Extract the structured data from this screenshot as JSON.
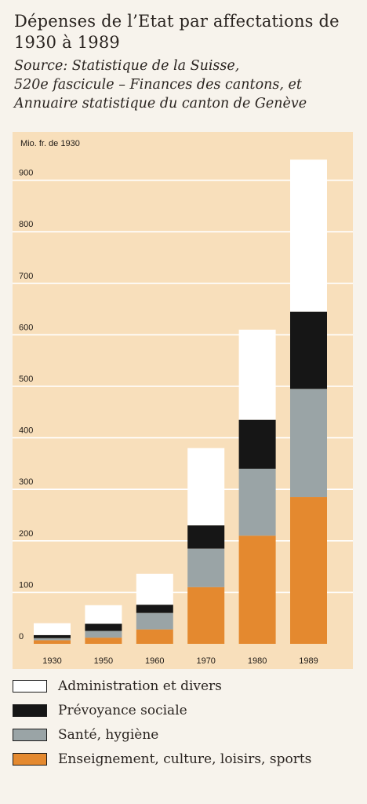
{
  "header": {
    "title": "Dépenses de l’Etat par affectations de 1930 à 1989",
    "source_line1": "Source: Statistique de la Suisse,",
    "source_line2": "520e fascicule – Finances des cantons, et",
    "source_line3": "Annuaire statistique du canton de Genève"
  },
  "colors": {
    "plot_background": "#f8dfbb",
    "gridline": "#ffffff",
    "administration": "#ffffff",
    "prevoyance": "#161616",
    "sante": "#9aa4a6",
    "enseignement": "#e4892f"
  },
  "chart_data": {
    "type": "bar",
    "stacked": true,
    "title": "Dépenses de l’Etat par affectations de 1930 à 1989",
    "ylabel": "Mio. fr. de 1930",
    "xlabel": "",
    "ylim": [
      0,
      940
    ],
    "yticks": [
      0,
      100,
      200,
      300,
      400,
      500,
      600,
      700,
      800,
      900
    ],
    "grid": true,
    "legend_position": "bottom",
    "categories": [
      "1930",
      "1950",
      "1960",
      "1970",
      "1980",
      "1989"
    ],
    "series": [
      {
        "name": "Enseignement, culture, loisirs, sports",
        "color": "#e4892f",
        "values": [
          7,
          12,
          28,
          110,
          210,
          285
        ]
      },
      {
        "name": "Santé, hygiène",
        "color": "#9aa4a6",
        "values": [
          4,
          13,
          32,
          75,
          130,
          210
        ]
      },
      {
        "name": "Prévoyance sociale",
        "color": "#161616",
        "values": [
          6,
          14,
          16,
          45,
          95,
          150
        ]
      },
      {
        "name": "Administration et divers",
        "color": "#ffffff",
        "values": [
          23,
          36,
          60,
          150,
          175,
          295
        ]
      }
    ]
  },
  "legend": {
    "items": [
      {
        "label": "Administration et divers",
        "color": "#ffffff"
      },
      {
        "label": "Prévoyance sociale",
        "color": "#161616"
      },
      {
        "label": "Santé, hygiène",
        "color": "#9aa4a6"
      },
      {
        "label": "Enseignement, culture, loisirs, sports",
        "color": "#e4892f"
      }
    ]
  }
}
